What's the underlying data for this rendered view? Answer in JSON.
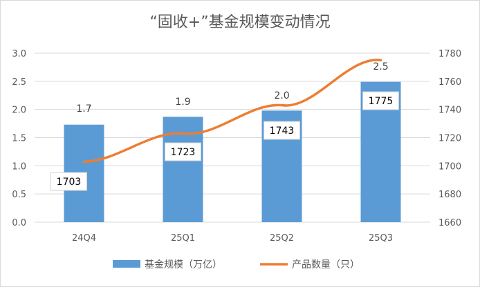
{
  "chart_data": {
    "type": "bar+line",
    "title": "“固收+”基金规模变动情况",
    "categories": [
      "24Q4",
      "25Q1",
      "25Q2",
      "25Q3"
    ],
    "series": [
      {
        "name": "基金规模（万亿）",
        "type": "bar",
        "axis": "left",
        "values": [
          1.73,
          1.87,
          1.98,
          2.49
        ],
        "labels": [
          "1.7",
          "1.9",
          "2.0",
          "2.5"
        ],
        "color": "#5b9bd5"
      },
      {
        "name": "产品数量（只）",
        "type": "line",
        "axis": "right",
        "values": [
          1703,
          1723,
          1743,
          1775
        ],
        "labels": [
          "1703",
          "1723",
          "1743",
          "1775"
        ],
        "color": "#ed7d31"
      }
    ],
    "y_left": {
      "min": 0,
      "max": 3,
      "ticks": [
        "0.0",
        "0.5",
        "1.0",
        "1.5",
        "2.0",
        "2.5",
        "3.0"
      ]
    },
    "y_right": {
      "min": 1660,
      "max": 1780,
      "ticks": [
        "1660",
        "1680",
        "1700",
        "1720",
        "1740",
        "1760",
        "1780"
      ]
    },
    "grid": true,
    "legend": "bottom"
  }
}
